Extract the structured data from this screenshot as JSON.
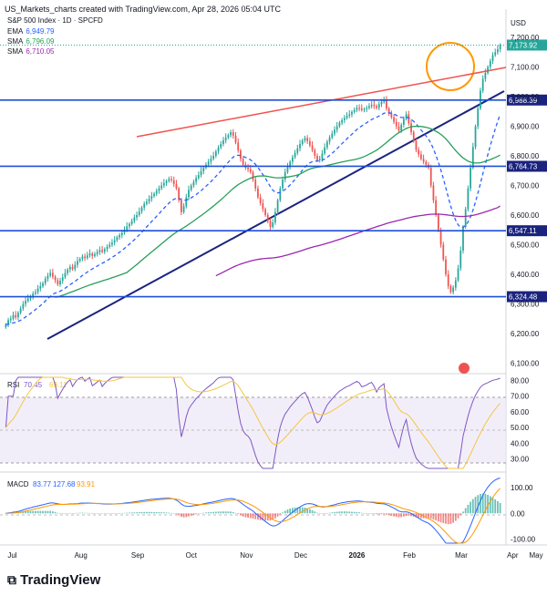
{
  "header": "US_Markets_charts created with TradingView.com, Apr 28, 2026 05:04 UTC",
  "footer_brand": "TradingView",
  "colors": {
    "up": "#26a69a",
    "down": "#ef5350",
    "ema": "#2962ff",
    "sma_fast": "#26a05a",
    "sma_slow": "#9c27b0",
    "resistance": "#ef5350",
    "support": "#1a237e",
    "levels": "#1e4fd6",
    "circle": "#ff9800",
    "rsi": "#7e57c2",
    "rsi_ma": "#f5c542"
  },
  "chart_data": [
    {
      "type": "candlestick",
      "title": "S&P 500 Index · 1D · SPCFD",
      "y_unit": "USD",
      "ylim": [
        6080,
        7280
      ],
      "y_ticks": [
        "7,200.00",
        "7,100.00",
        "7,000.00",
        "6,900.00",
        "6,800.00",
        "6,700.00",
        "6,600.00",
        "6,500.00",
        "6,400.00",
        "6,300.00",
        "6,200.00",
        "6,100.00"
      ],
      "x_ticks": [
        "Jul",
        "Aug",
        "Sep",
        "Oct",
        "Nov",
        "Dec",
        "2026",
        "Feb",
        "Mar",
        "Apr",
        "May"
      ],
      "last_price": "7,173.92",
      "indicators": [
        {
          "name": "EMA",
          "value": "6,949.79"
        },
        {
          "name": "SMA",
          "value": "6,796.09"
        },
        {
          "name": "SMA",
          "value": "6,710.05"
        }
      ],
      "levels": [
        "6,988.39",
        "6,764.73",
        "6,547.11",
        "6,324.48"
      ],
      "closes": [
        6230,
        6245,
        6250,
        6262,
        6255,
        6270,
        6285,
        6300,
        6310,
        6318,
        6325,
        6335,
        6340,
        6352,
        6360,
        6370,
        6385,
        6395,
        6405,
        6392,
        6380,
        6366,
        6378,
        6390,
        6404,
        6416,
        6425,
        6418,
        6432,
        6445,
        6452,
        6460,
        6455,
        6464,
        6470,
        6462,
        6468,
        6475,
        6482,
        6476,
        6485,
        6493,
        6500,
        6507,
        6515,
        6525,
        6532,
        6540,
        6550,
        6562,
        6570,
        6580,
        6592,
        6600,
        6612,
        6625,
        6638,
        6645,
        6655,
        6664,
        6672,
        6682,
        6690,
        6700,
        6708,
        6715,
        6722,
        6718,
        6705,
        6690,
        6650,
        6610,
        6630,
        6660,
        6685,
        6700,
        6712,
        6725,
        6735,
        6748,
        6760,
        6770,
        6780,
        6790,
        6800,
        6815,
        6828,
        6840,
        6852,
        6862,
        6870,
        6880,
        6868,
        6845,
        6818,
        6790,
        6770,
        6760,
        6755,
        6745,
        6720,
        6690,
        6660,
        6640,
        6620,
        6600,
        6580,
        6560,
        6575,
        6610,
        6650,
        6690,
        6720,
        6745,
        6762,
        6780,
        6795,
        6810,
        6825,
        6840,
        6852,
        6860,
        6850,
        6835,
        6820,
        6800,
        6785,
        6790,
        6808,
        6828,
        6848,
        6862,
        6875,
        6888,
        6900,
        6912,
        6920,
        6928,
        6935,
        6940,
        6948,
        6955,
        6962,
        6960,
        6955,
        6958,
        6962,
        6968,
        6972,
        6968,
        6962,
        6975,
        6982,
        6988,
        6960,
        6945,
        6930,
        6915,
        6900,
        6885,
        6905,
        6925,
        6940,
        6910,
        6880,
        6850,
        6820,
        6805,
        6790,
        6780,
        6770,
        6760,
        6700,
        6650,
        6600,
        6550,
        6500,
        6450,
        6400,
        6360,
        6340,
        6355,
        6380,
        6420,
        6480,
        6560,
        6620,
        6690,
        6760,
        6830,
        6900,
        6960,
        7020,
        7060,
        7080,
        7100,
        7120,
        7140,
        7150,
        7160,
        7173.92
      ],
      "rsi": {
        "label": "RSI",
        "value": "70.45",
        "ma_value": "69.11",
        "ylim": [
          24,
          82
        ],
        "y_ticks": [
          "80.00",
          "70.00",
          "60.00",
          "50.00",
          "40.00",
          "30.00"
        ]
      },
      "macd": {
        "label": "MACD",
        "values": [
          "83.77",
          "127.68",
          "93.91"
        ],
        "ylim": [
          -115,
          145
        ],
        "y_ticks": [
          "100.00",
          "0.00",
          "-100.00"
        ]
      }
    }
  ]
}
